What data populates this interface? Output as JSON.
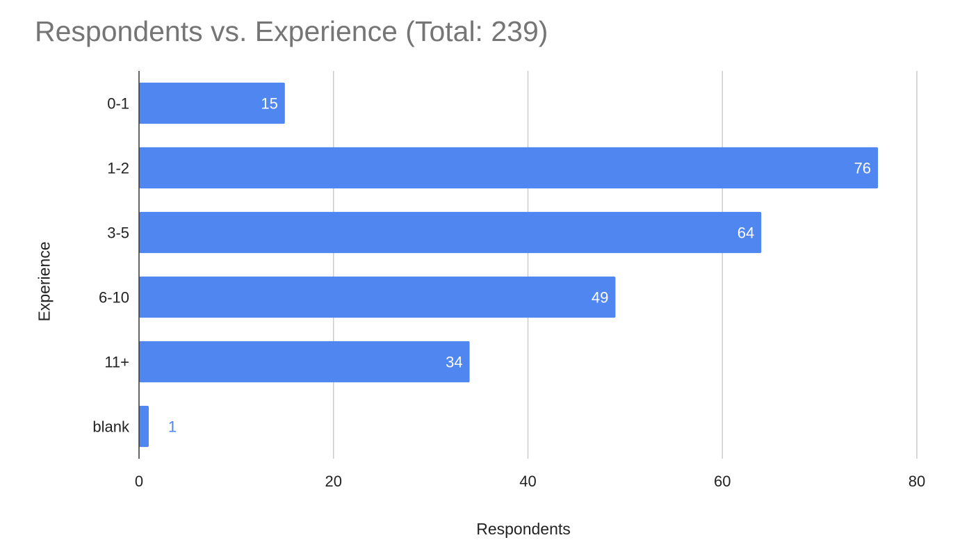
{
  "chart_data": {
    "type": "bar",
    "orientation": "horizontal",
    "title": "Respondents vs. Experience (Total: 239)",
    "xlabel": "Respondents",
    "ylabel": "Experience",
    "categories": [
      "0-1",
      "1-2",
      "3-5",
      "6-10",
      "11+",
      "blank"
    ],
    "values": [
      15,
      76,
      64,
      49,
      34,
      1
    ],
    "xlim": [
      0,
      80
    ],
    "xticks": [
      0,
      20,
      40,
      60,
      80
    ],
    "grid": true,
    "legend": "none",
    "bar_color": "#4f86ef",
    "label_inside_color": "#ffffff",
    "label_outside_color": "#4f86ef"
  }
}
